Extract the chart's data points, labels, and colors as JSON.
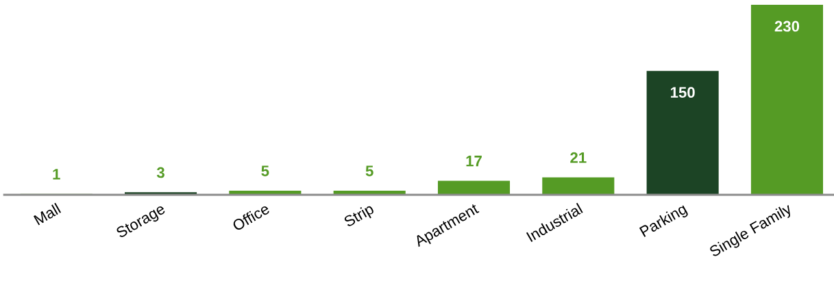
{
  "chart_data": {
    "type": "bar",
    "categories": [
      "Mall",
      "Storage",
      "Office",
      "Strip",
      "Apartment",
      "Industrial",
      "Parking",
      "Single Family"
    ],
    "values": [
      1,
      3,
      5,
      5,
      17,
      21,
      150,
      230
    ],
    "colors": [
      "#559b25",
      "#1c4425",
      "#559b25",
      "#559b25",
      "#559b25",
      "#559b25",
      "#1c4425",
      "#559b25"
    ],
    "data_labels": true
  }
}
